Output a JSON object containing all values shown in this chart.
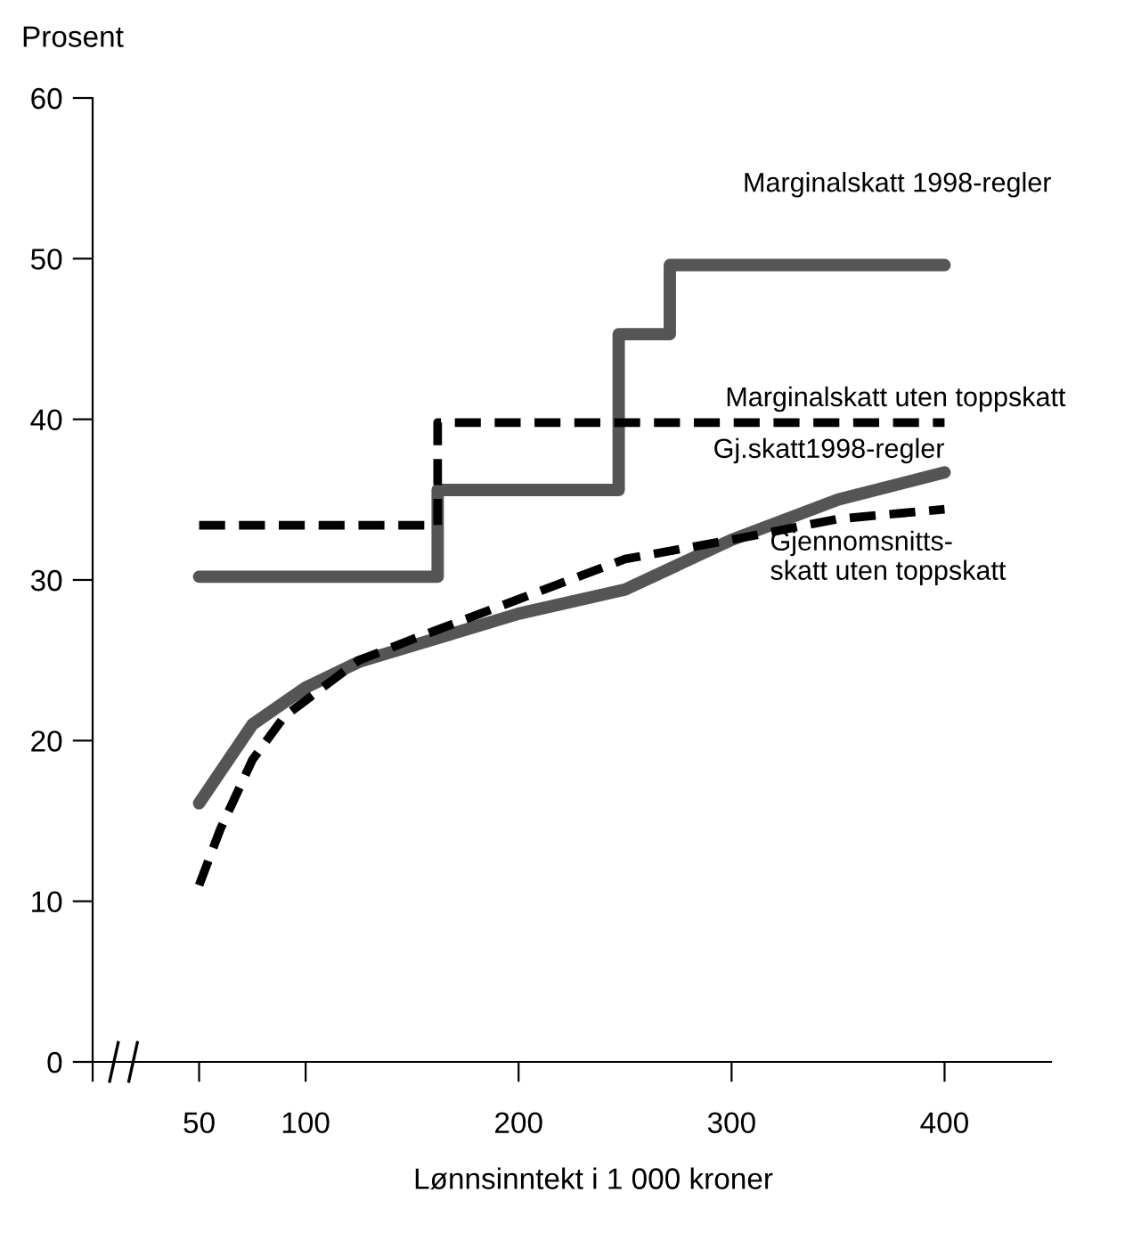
{
  "chart_data": {
    "type": "line",
    "ylabel": "Prosent",
    "xlabel": "Lønnsinntekt i 1 000 kroner",
    "xlim": [
      0,
      450
    ],
    "ylim": [
      0,
      60
    ],
    "xticks": [
      {
        "value": 0,
        "label": null
      },
      50,
      100,
      200,
      300,
      400
    ],
    "yticks": [
      0,
      10,
      20,
      30,
      40,
      50,
      60
    ],
    "grid": false,
    "legend": false,
    "marker": "none",
    "series": [
      {
        "name": "Marginalskatt 1998-regler",
        "type": "step",
        "line_style": "solid",
        "color": "#555555",
        "x": [
          50,
          162,
          247,
          271,
          400
        ],
        "values": [
          30.2,
          35.6,
          45.3,
          49.6,
          49.6
        ]
      },
      {
        "name": "Marginalskatt uten toppskatt",
        "type": "step",
        "line_style": "dashed",
        "color": "#000000",
        "x": [
          50,
          162,
          400
        ],
        "values": [
          33.4,
          39.8,
          39.8
        ]
      },
      {
        "name": "Gj.skatt1998-regler",
        "line_style": "solid",
        "color": "#555555",
        "x": [
          50,
          75,
          100,
          125,
          150,
          200,
          250,
          300,
          350,
          400
        ],
        "values": [
          16.1,
          21.0,
          23.3,
          24.9,
          25.9,
          27.9,
          29.4,
          32.5,
          35.0,
          36.7
        ]
      },
      {
        "name": "Gjennomsnitts-\nskatt uten toppskatt",
        "line_style": "dashed",
        "color": "#000000",
        "x": [
          50,
          60,
          75,
          90,
          100,
          125,
          150,
          200,
          250,
          300,
          350,
          400
        ],
        "values": [
          11.0,
          14.5,
          18.8,
          21.5,
          22.5,
          25.0,
          26.3,
          28.8,
          31.3,
          32.5,
          33.8,
          34.4
        ]
      }
    ]
  }
}
